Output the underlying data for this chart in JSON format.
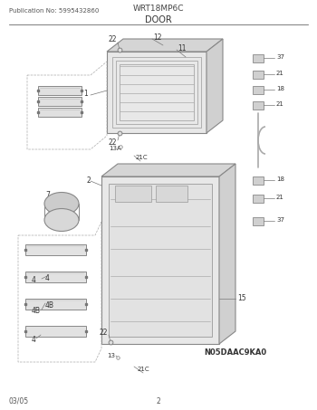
{
  "title_pub": "Publication No: 5995432860",
  "title_model": "WRT18MP6C",
  "title_section": "DOOR",
  "diagram_code": "N05DAAC9KA0",
  "footer_date": "03/05",
  "footer_page": "2",
  "bg_color": "#ffffff",
  "line_color": "#888888",
  "text_color": "#333333",
  "gray_light": "#cccccc",
  "gray_mid": "#aaaaaa",
  "gray_dark": "#777777"
}
